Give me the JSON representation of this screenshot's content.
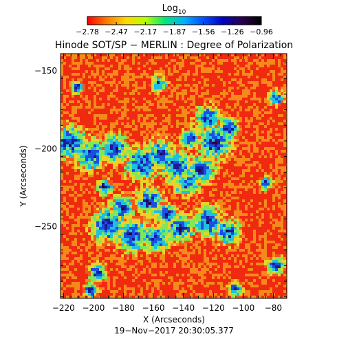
{
  "colorbar": {
    "label": "Log",
    "label_sub": "10",
    "tick_labels": [
      "−2.78",
      "−2.47",
      "−2.17",
      "−1.87",
      "−1.56",
      "−1.26",
      "−0.96"
    ],
    "colors": [
      "#ff0000",
      "#ff7a00",
      "#ffd800",
      "#b8ff00",
      "#00e878",
      "#00b0ff",
      "#0050ff",
      "#0000c8",
      "#2a004a",
      "#000000"
    ]
  },
  "title": "Hinode SOT/SP − MERLIN : Degree of Polarization",
  "axes": {
    "xlabel": "X (Arcseconds)",
    "ylabel": "Y (Arcseconds)",
    "x_ticks": [
      "−220",
      "−200",
      "−180",
      "−160",
      "−140",
      "−120",
      "−100",
      "−80"
    ],
    "y_ticks": [
      "−150",
      "−200",
      "−250"
    ],
    "x_range": [
      -222,
      -71
    ],
    "y_range": [
      -296,
      -139
    ]
  },
  "timestamp": "19−Nov−2017 20:30:05.377",
  "map": {
    "background_color": "#f2581a",
    "levels": [
      "#f02a10",
      "#f58a1a",
      "#e9d32a",
      "#7fe85a",
      "#1fbfe0",
      "#1a4fe0",
      "#1a1a9a",
      "#300040"
    ]
  }
}
